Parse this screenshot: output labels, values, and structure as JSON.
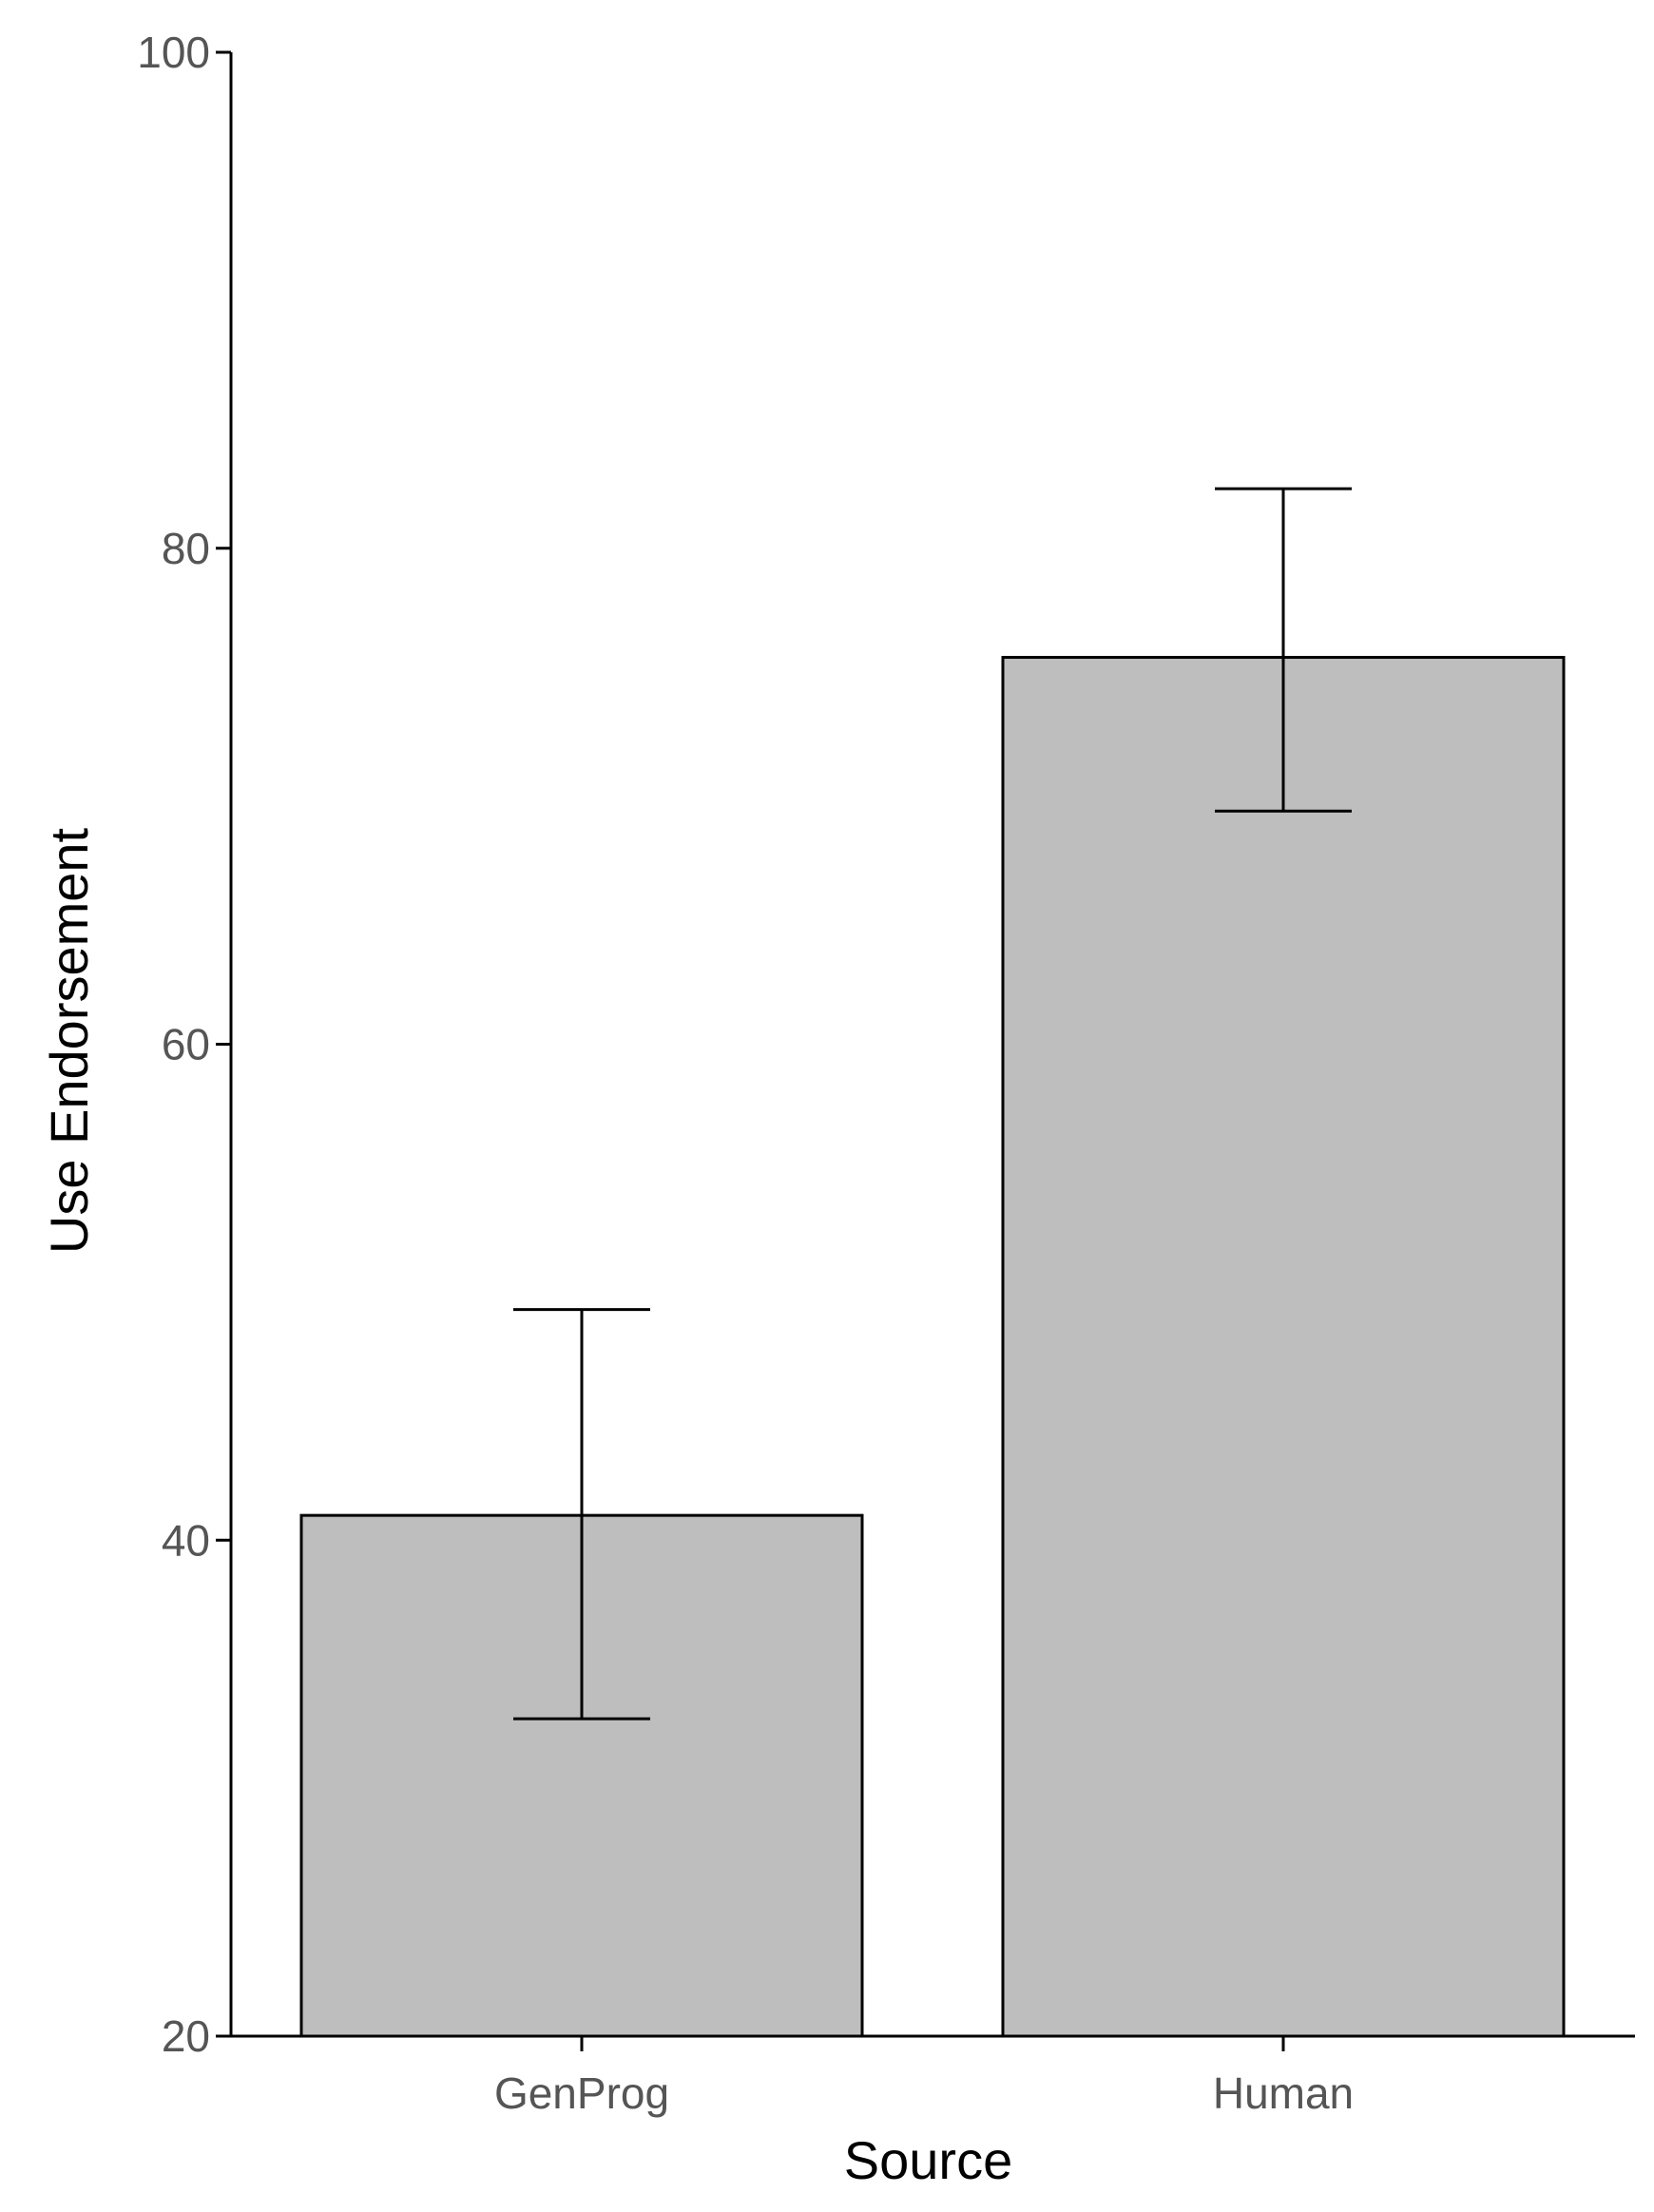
{
  "chart_data": {
    "type": "bar",
    "categories": [
      "GenProg",
      "Human"
    ],
    "values": [
      41,
      75.6
    ],
    "error_bars": [
      {
        "low": 32.8,
        "high": 49.3
      },
      {
        "low": 69.4,
        "high": 82.4
      }
    ],
    "xlabel": "Source",
    "ylabel": "Use Endorsement",
    "ylim": [
      20,
      100
    ],
    "yticks": [
      20,
      40,
      60,
      80,
      100
    ],
    "grid": false,
    "bar_fill": "#bebebe",
    "bar_stroke": "#000000"
  }
}
